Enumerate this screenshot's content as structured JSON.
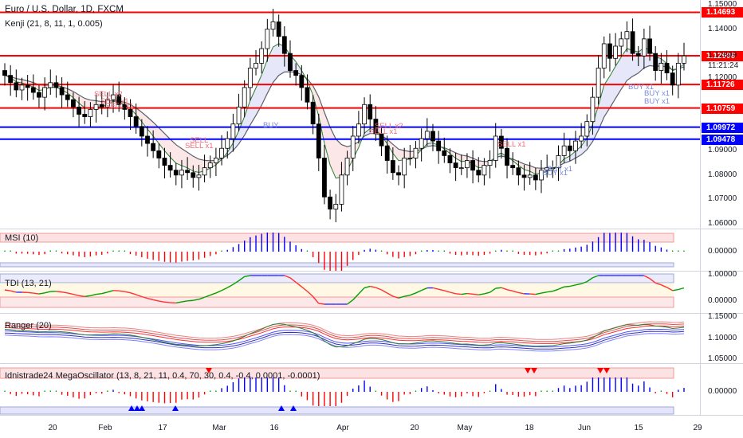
{
  "header": {
    "symbol": "Euro / U.S. Dollar, 1D, FXCM",
    "indicator": "Kenji (21, 8, 11, 1, 0.005)"
  },
  "panes": {
    "msi": "MSI (10)",
    "tdi": "TDI (13, 21)",
    "ranger": "Ranger (20)",
    "mega": "Idnistrade24 MegaOscillator (13, 8, 21, 11, 0.4, 70, 30, 0.4, -0.4, 0.0001, -0.0001)"
  },
  "right_axis": {
    "main_ticks": [
      "1.15000",
      "1.14000",
      "1.12000",
      "1.09000",
      "1.08000",
      "1.07000",
      "1.06000"
    ],
    "current_price": "1.12899",
    "countdown": "11:21:24",
    "msi_ticks": [
      "0.00000"
    ],
    "tdi_ticks": [
      "1.00000",
      "0.00000"
    ],
    "ranger_ticks": [
      "1.15000",
      "1.10000",
      "1.05000"
    ],
    "mega_ticks": [
      "0.00000"
    ]
  },
  "levels": [
    {
      "value": "1.14693",
      "color": "#ff0000"
    },
    {
      "value": "1.12906",
      "color": "#ff0000"
    },
    {
      "value": "1.11726",
      "color": "#ff0000"
    },
    {
      "value": "1.10759",
      "color": "#ff0000"
    },
    {
      "value": "1.09972",
      "color": "#0000ff"
    },
    {
      "value": "1.09478",
      "color": "#0000ff"
    }
  ],
  "x_axis": [
    "20",
    "Feb",
    "17",
    "Mar",
    "16",
    "Apr",
    "20",
    "May",
    "18",
    "Jun",
    "15",
    "29"
  ],
  "signals": [
    {
      "text": "SELL x2",
      "kind": "sell"
    },
    {
      "text": "SELL x1",
      "kind": "sell"
    },
    {
      "text": "SELL x1",
      "kind": "sell"
    },
    {
      "text": "SELL",
      "kind": "sell"
    },
    {
      "text": "SELL x1",
      "kind": "sell"
    },
    {
      "text": "SELL x2",
      "kind": "sell"
    },
    {
      "text": "SELL x1",
      "kind": "sell"
    },
    {
      "text": "SELL x1",
      "kind": "sell"
    },
    {
      "text": "BUY",
      "kind": "buy"
    },
    {
      "text": "BUY x1",
      "kind": "buy"
    },
    {
      "text": "BUY x1",
      "kind": "buy"
    },
    {
      "text": "BUY x1",
      "kind": "buy"
    },
    {
      "text": "BUY x1",
      "kind": "buy"
    },
    {
      "text": "BUY x1",
      "kind": "buy"
    }
  ],
  "chart_data": {
    "type": "candlestick",
    "title": "Euro / U.S. Dollar, 1D, FXCM",
    "ylim": [
      1.058,
      1.152
    ],
    "closes": [
      1.121,
      1.118,
      1.115,
      1.117,
      1.116,
      1.114,
      1.112,
      1.116,
      1.118,
      1.116,
      1.113,
      1.111,
      1.108,
      1.105,
      1.104,
      1.107,
      1.109,
      1.108,
      1.111,
      1.113,
      1.109,
      1.107,
      1.104,
      1.1,
      1.096,
      1.093,
      1.09,
      1.087,
      1.084,
      1.082,
      1.08,
      1.082,
      1.081,
      1.079,
      1.08,
      1.083,
      1.085,
      1.087,
      1.091,
      1.095,
      1.101,
      1.108,
      1.116,
      1.124,
      1.126,
      1.132,
      1.14,
      1.143,
      1.137,
      1.13,
      1.123,
      1.121,
      1.116,
      1.11,
      1.101,
      1.087,
      1.071,
      1.066,
      1.068,
      1.08,
      1.087,
      1.096,
      1.101,
      1.109,
      1.103,
      1.097,
      1.092,
      1.086,
      1.081,
      1.08,
      1.087,
      1.087,
      1.091,
      1.095,
      1.098,
      1.094,
      1.09,
      1.088,
      1.085,
      1.083,
      1.083,
      1.086,
      1.082,
      1.08,
      1.084,
      1.086,
      1.096,
      1.091,
      1.084,
      1.083,
      1.08,
      1.079,
      1.08,
      1.078,
      1.082,
      1.083,
      1.083,
      1.088,
      1.092,
      1.09,
      1.094,
      1.096,
      1.102,
      1.112,
      1.124,
      1.134,
      1.128,
      1.133,
      1.136,
      1.139,
      1.13,
      1.129,
      1.136,
      1.13,
      1.123,
      1.126,
      1.122,
      1.117,
      1.126,
      1.129
    ],
    "overlay_bands": "fast/slow averages with shaded band (blue when rising, red when falling)",
    "levels": [
      1.14693,
      1.12906,
      1.11726,
      1.10759,
      1.09972,
      1.09478
    ],
    "subpanes": [
      {
        "name": "MSI (10)",
        "type": "histogram",
        "zero": 0.0
      },
      {
        "name": "TDI (13, 21)",
        "type": "line",
        "range": [
          0.0,
          1.0
        ]
      },
      {
        "name": "Ranger (20)",
        "type": "bands",
        "ticks": [
          1.15,
          1.1,
          1.05
        ]
      },
      {
        "name": "Idnistrade24 MegaOscillator",
        "type": "histogram",
        "zero": 0.0
      }
    ],
    "xticks": [
      "20",
      "Feb",
      "17",
      "Mar",
      "16",
      "Apr",
      "20",
      "May",
      "18",
      "Jun",
      "15",
      "29"
    ]
  }
}
